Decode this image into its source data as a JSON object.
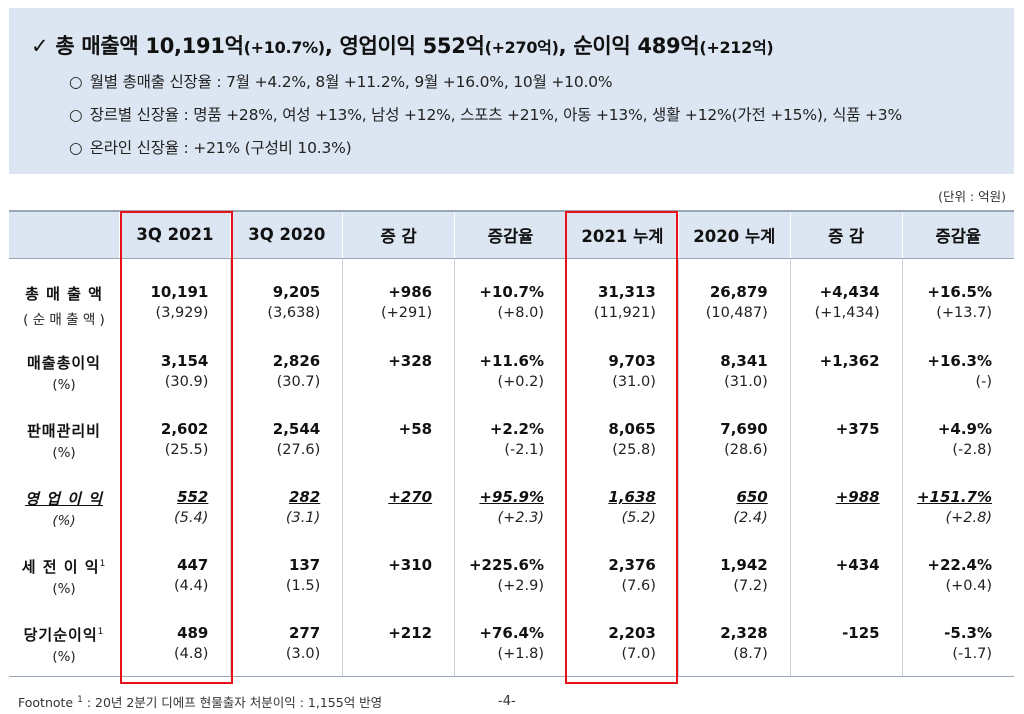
{
  "summary": {
    "check_mark": "✓",
    "headline_parts": [
      {
        "text": "총 매출액 10,191억",
        "small": false
      },
      {
        "text": "(+10.7%)",
        "small": true
      },
      {
        "text": ", 영업이익 552억",
        "small": false
      },
      {
        "text": "(+270억)",
        "small": true
      },
      {
        "text": ", 순이익 489억",
        "small": false
      },
      {
        "text": "(+212억)",
        "small": true
      }
    ],
    "bullets": [
      {
        "symbol": "○",
        "text": "월별 총매출 신장율 :  7월 +4.2%, 8월 +11.2%, 9월 +16.0%, 10월 +10.0%"
      },
      {
        "symbol": "○",
        "text": "장르별 신장율 : 명품 +28%, 여성 +13%, 남성 +12%, 스포츠 +21%, 아동 +13%, 생활 +12%(가전 +15%), 식품 +3%"
      },
      {
        "symbol": "○",
        "text": "온라인 신장율 : +21% (구성비 10.3%)"
      }
    ]
  },
  "unit_label": "(단위 : 억원)",
  "table": {
    "headers": [
      "",
      "3Q 2021",
      "3Q 2020",
      "증  감",
      "증감율",
      "2021 누계",
      "2020 누계",
      "증  감",
      "증감율"
    ],
    "rows": [
      {
        "label": "총 매 출 액",
        "label_sub": "( 순 매 출 액 )",
        "label_sup": "",
        "main": [
          "10,191",
          "9,205",
          "+986",
          "+10.7%",
          "31,313",
          "26,879",
          "+4,434",
          "+16.5%"
        ],
        "sub": [
          "(3,929)",
          "(3,638)",
          "(+291)",
          "(+8.0)",
          "(11,921)",
          "(10,487)",
          "(+1,434)",
          "(+13.7)"
        ]
      },
      {
        "label": "매출총이익",
        "label_sub": "(%)",
        "label_sup": "",
        "main": [
          "3,154",
          "2,826",
          "+328",
          "+11.6%",
          "9,703",
          "8,341",
          "+1,362",
          "+16.3%"
        ],
        "sub": [
          "(30.9)",
          "(30.7)",
          "",
          "(+0.2)",
          "(31.0)",
          "(31.0)",
          "",
          "(-)"
        ]
      },
      {
        "label": "판매관리비",
        "label_sub": "(%)",
        "label_sup": "",
        "main": [
          "2,602",
          "2,544",
          "+58",
          "+2.2%",
          "8,065",
          "7,690",
          "+375",
          "+4.9%"
        ],
        "sub": [
          "(25.5)",
          "(27.6)",
          "",
          "(-2.1)",
          "(25.8)",
          "(28.6)",
          "",
          "(-2.8)"
        ]
      },
      {
        "label": "영 업 이 익",
        "label_sub": "(%)",
        "label_sup": "",
        "main": [
          "552",
          "282",
          "+270",
          "+95.9%",
          "1,638",
          "650",
          "+988",
          "+151.7%"
        ],
        "sub": [
          "(5.4)",
          "(3.1)",
          "",
          "(+2.3)",
          "(5.2)",
          "(2.4)",
          "",
          "(+2.8)"
        ]
      },
      {
        "label": "세 전 이 익",
        "label_sub": "(%)",
        "label_sup": "1",
        "main": [
          "447",
          "137",
          "+310",
          "+225.6%",
          "2,376",
          "1,942",
          "+434",
          "+22.4%"
        ],
        "sub": [
          "(4.4)",
          "(1.5)",
          "",
          "(+2.9)",
          "(7.6)",
          "(7.2)",
          "",
          "(+0.4)"
        ]
      },
      {
        "label": "당기순이익",
        "label_sub": "(%)",
        "label_sup": "1",
        "main": [
          "489",
          "277",
          "+212",
          "+76.4%",
          "2,203",
          "2,328",
          "-125",
          "-5.3%"
        ],
        "sub": [
          "(4.8)",
          "(3.0)",
          "",
          "(+1.8)",
          "(7.0)",
          "(8.7)",
          "",
          "(-1.7)"
        ]
      }
    ]
  },
  "footnote": {
    "label": "Footnote",
    "sup": "1",
    "text": " : 20년 2분기 디에프 현물출자 처분이익 : 1,155억 반영"
  },
  "page_number": "-4-",
  "colors": {
    "summary_bg": "#dce6f2",
    "header_bg": "#dce6f2",
    "highlight_box": "#e8111a",
    "operating_profit_text": "#2f3de0"
  }
}
